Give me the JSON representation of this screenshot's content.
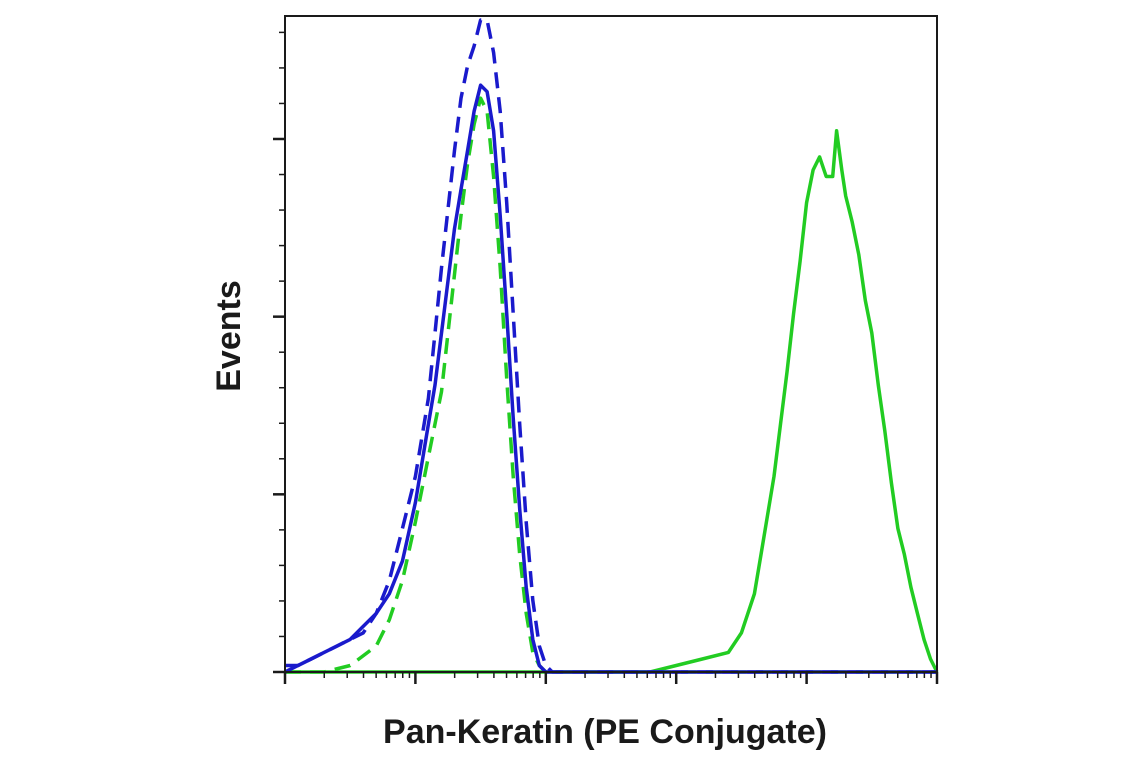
{
  "chart_data": {
    "type": "line",
    "title": "",
    "xlabel": "Pan-Keratin (PE Conjugate)",
    "ylabel": "Events",
    "x_scale": "log",
    "xlim": [
      0,
      5
    ],
    "ylim": [
      0,
      1.0
    ],
    "grid": false,
    "legend": "none",
    "x_tick_labels": [],
    "y_tick_labels": [],
    "series": [
      {
        "color": "#22cc22",
        "style": "solid",
        "x": [
          0.0,
          0.3,
          0.6,
          0.9,
          1.2,
          1.5,
          1.8,
          2.1,
          2.4,
          2.6,
          2.8,
          3.0,
          3.2,
          3.4,
          3.5,
          3.6,
          3.65,
          3.7,
          3.75,
          3.8,
          3.85,
          3.9,
          3.95,
          4.0,
          4.05,
          4.1,
          4.15,
          4.2,
          4.23,
          4.27,
          4.3,
          4.35,
          4.4,
          4.45,
          4.5,
          4.55,
          4.6,
          4.65,
          4.7,
          4.75,
          4.8,
          4.85,
          4.9,
          4.95,
          5.0
        ],
        "y": [
          0,
          0,
          0,
          0,
          0,
          0,
          0,
          0,
          0,
          0,
          0,
          0.01,
          0.02,
          0.03,
          0.06,
          0.12,
          0.18,
          0.24,
          0.3,
          0.38,
          0.46,
          0.55,
          0.63,
          0.72,
          0.77,
          0.79,
          0.76,
          0.76,
          0.83,
          0.77,
          0.73,
          0.69,
          0.64,
          0.57,
          0.52,
          0.44,
          0.37,
          0.29,
          0.22,
          0.18,
          0.13,
          0.09,
          0.05,
          0.02,
          0
        ]
      },
      {
        "color": "#22cc22",
        "style": "dashed",
        "x": [
          0.0,
          0.3,
          0.5,
          0.7,
          0.8,
          0.9,
          1.0,
          1.1,
          1.2,
          1.25,
          1.3,
          1.35,
          1.4,
          1.45,
          1.5,
          1.55,
          1.6,
          1.65,
          1.7,
          1.75,
          1.8,
          1.85,
          1.9,
          1.95,
          2.0,
          2.05,
          2.1,
          2.2,
          2.3,
          2.5,
          3.0,
          4.0,
          5.0
        ],
        "y": [
          0,
          0,
          0.01,
          0.04,
          0.08,
          0.14,
          0.23,
          0.33,
          0.43,
          0.52,
          0.61,
          0.7,
          0.78,
          0.84,
          0.88,
          0.86,
          0.76,
          0.62,
          0.45,
          0.3,
          0.18,
          0.09,
          0.03,
          0.01,
          0,
          0,
          0,
          0,
          0,
          0,
          0,
          0,
          0
        ]
      },
      {
        "color": "#1a1acc",
        "style": "solid",
        "x": [
          0.0,
          0.1,
          0.2,
          0.3,
          0.4,
          0.5,
          0.6,
          0.7,
          0.8,
          0.9,
          1.0,
          1.1,
          1.15,
          1.2,
          1.25,
          1.3,
          1.35,
          1.4,
          1.45,
          1.5,
          1.55,
          1.6,
          1.65,
          1.7,
          1.75,
          1.8,
          1.85,
          1.9,
          1.95,
          2.0,
          2.1,
          2.3,
          2.5,
          3.0,
          4.0,
          5.0
        ],
        "y": [
          0.01,
          0.01,
          0.02,
          0.03,
          0.04,
          0.05,
          0.07,
          0.09,
          0.12,
          0.17,
          0.26,
          0.38,
          0.44,
          0.52,
          0.6,
          0.68,
          0.74,
          0.8,
          0.86,
          0.9,
          0.89,
          0.83,
          0.7,
          0.55,
          0.39,
          0.25,
          0.13,
          0.05,
          0.01,
          0,
          0,
          0,
          0,
          0,
          0,
          0
        ]
      },
      {
        "color": "#1a1acc",
        "style": "dashed",
        "x": [
          0.0,
          0.2,
          0.4,
          0.6,
          0.7,
          0.8,
          0.9,
          1.0,
          1.1,
          1.15,
          1.2,
          1.25,
          1.3,
          1.35,
          1.4,
          1.45,
          1.5,
          1.55,
          1.6,
          1.65,
          1.7,
          1.75,
          1.8,
          1.85,
          1.9,
          1.95,
          2.0,
          2.05,
          2.1,
          2.2,
          2.5,
          3.0,
          4.0,
          5.0
        ],
        "y": [
          0,
          0.02,
          0.04,
          0.06,
          0.09,
          0.14,
          0.22,
          0.3,
          0.42,
          0.52,
          0.62,
          0.71,
          0.8,
          0.88,
          0.93,
          0.96,
          1.0,
          1.0,
          0.95,
          0.86,
          0.72,
          0.55,
          0.38,
          0.23,
          0.11,
          0.04,
          0.01,
          0,
          0,
          0,
          0,
          0,
          0,
          0
        ]
      }
    ]
  }
}
